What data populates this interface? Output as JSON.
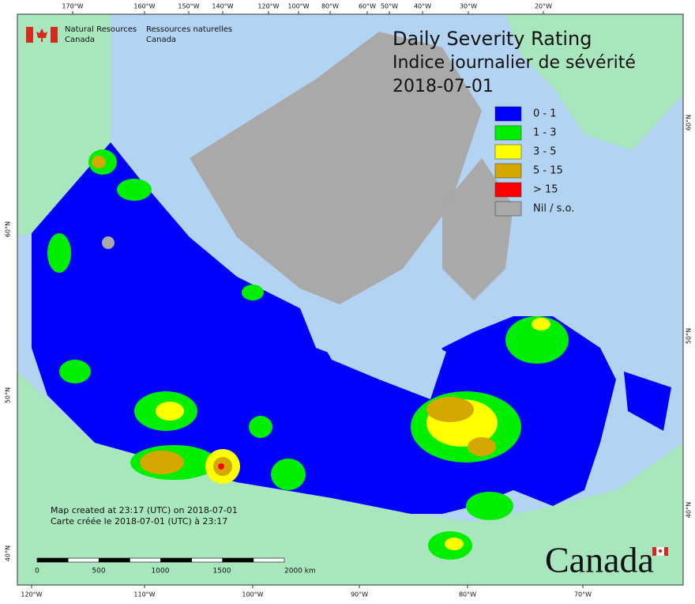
{
  "org": {
    "en": [
      "Natural Resources",
      "Canada"
    ],
    "fr": [
      "Ressources naturelles",
      "Canada"
    ]
  },
  "title": {
    "en": "Daily Severity Rating",
    "fr": "Indice journalier de sévérité",
    "date": "2018-07-01"
  },
  "legend": [
    {
      "label": "0 - 1",
      "color": "#0000ff"
    },
    {
      "label": "1 - 3",
      "color": "#00ee00"
    },
    {
      "label": "3 - 5",
      "color": "#ffff00"
    },
    {
      "label": "5 - 15",
      "color": "#d4a800"
    },
    {
      "label": "> 15",
      "color": "#ff0000"
    },
    {
      "label": "Nil / s.o.",
      "color": "#a9a9a9"
    }
  ],
  "credits": [
    "Map created at 23:17 (UTC) on 2018-07-01",
    "Carte créée le 2018-07-01 (UTC) à 23:17"
  ],
  "scale_bar": [
    "0",
    "500",
    "1000",
    "1500",
    "2000 km"
  ],
  "graticule": {
    "top": [
      "170°W",
      "160°W",
      "150°W",
      "140°W",
      "120°W",
      "100°W",
      "80°W",
      "60°W",
      "50°W",
      "40°W",
      "30°W",
      "20°W"
    ],
    "bottom": [
      "120°W",
      "110°W",
      "100°W",
      "90°W",
      "80°W",
      "70°W"
    ],
    "left": [
      "60°N",
      "50°N",
      "40°N"
    ],
    "right": [
      "60°N",
      "50°N",
      "40°N"
    ]
  },
  "wordmark": "Canada"
}
